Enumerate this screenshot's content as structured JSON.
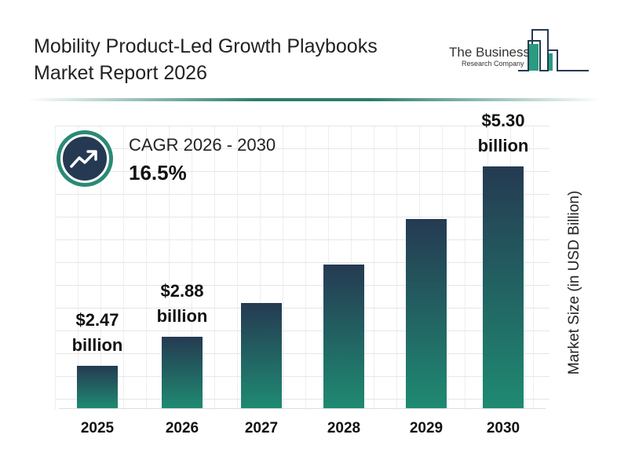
{
  "header": {
    "title_line1": "Mobility Product-Led Growth Playbooks",
    "title_line2": "Market Report 2026"
  },
  "logo": {
    "line1": "The Business",
    "line2": "Research Company"
  },
  "cagr": {
    "label": "CAGR 2026 - 2030",
    "value": "16.5%",
    "icon": "trending-up-icon"
  },
  "colors": {
    "bar_top": "#253a52",
    "bar_bottom": "#1f8a72",
    "accent": "#2a8a73"
  },
  "chart_data": {
    "type": "bar",
    "categories": [
      "2025",
      "2026",
      "2027",
      "2028",
      "2029",
      "2030"
    ],
    "values": [
      2.47,
      2.88,
      3.36,
      3.91,
      4.55,
      5.3
    ],
    "data_labels": [
      {
        "value": "$2.47",
        "unit": "billion"
      },
      {
        "value": "$2.88",
        "unit": "billion"
      },
      null,
      null,
      null,
      {
        "value": "$5.30",
        "unit": "billion"
      }
    ],
    "ylabel": "Market Size (in USD Billion)",
    "grid": true
  }
}
